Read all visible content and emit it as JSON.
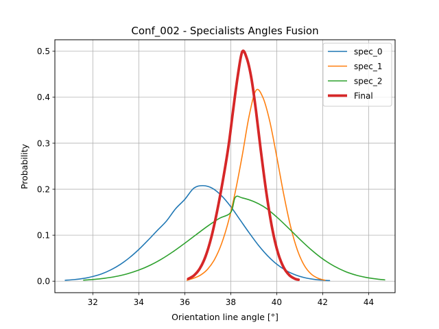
{
  "chart_data": {
    "type": "line",
    "title": "Conf_002 - Specialists Angles Fusion",
    "xlabel": "Orientation line angle [°]",
    "ylabel": "Probability",
    "xlim": [
      30.35,
      45.15
    ],
    "ylim": [
      -0.025,
      0.525
    ],
    "xticks": [
      32,
      34,
      36,
      38,
      40,
      42,
      44
    ],
    "yticks": [
      0.0,
      0.1,
      0.2,
      0.3,
      0.4,
      0.5
    ],
    "grid": true,
    "legend_position": "top-right",
    "series": [
      {
        "name": "spec_0",
        "color": "#1f77b4",
        "x": [
          30.8,
          31.2,
          31.6,
          32.0,
          32.4,
          32.8,
          33.2,
          33.6,
          34.0,
          34.4,
          34.8,
          35.2,
          35.6,
          36.0,
          36.4,
          36.8,
          37.2,
          37.6,
          38.0,
          38.4,
          38.8,
          39.2,
          39.6,
          40.0,
          40.4,
          40.8,
          41.2,
          41.6,
          42.0,
          42.3
        ],
        "y": [
          0.002,
          0.0035,
          0.006,
          0.0102,
          0.0162,
          0.025,
          0.0366,
          0.0513,
          0.0689,
          0.0889,
          0.11,
          0.1306,
          0.1574,
          0.1778,
          0.2025,
          0.2077,
          0.2021,
          0.1859,
          0.1623,
          0.1338,
          0.1053,
          0.0784,
          0.0554,
          0.037,
          0.0233,
          0.0139,
          0.0078,
          0.0042,
          0.0021,
          0.0013
        ]
      },
      {
        "name": "spec_1",
        "color": "#ff7f0e",
        "x": [
          36.1,
          36.4,
          36.7,
          37.0,
          37.3,
          37.6,
          37.9,
          38.2,
          38.5,
          38.8,
          39.1,
          39.4,
          39.7,
          40.0,
          40.3,
          40.6,
          40.9,
          41.2,
          41.5,
          41.8,
          42.1
        ],
        "y": [
          0.002,
          0.0066,
          0.0136,
          0.0263,
          0.0477,
          0.0814,
          0.1301,
          0.1947,
          0.2732,
          0.3593,
          0.415,
          0.3995,
          0.3472,
          0.2711,
          0.1901,
          0.1196,
          0.0675,
          0.0342,
          0.0155,
          0.0063,
          0.002
        ]
      },
      {
        "name": "spec_2",
        "color": "#2ca02c",
        "x": [
          31.6,
          32.0,
          32.5,
          33.0,
          33.5,
          34.0,
          34.5,
          35.0,
          35.5,
          36.0,
          36.5,
          37.0,
          37.5,
          38.0,
          38.2,
          38.5,
          39.0,
          39.5,
          40.0,
          40.5,
          41.0,
          41.5,
          42.0,
          42.5,
          43.0,
          43.5,
          44.0,
          44.5,
          44.7
        ],
        "y": [
          0.0023,
          0.0036,
          0.0062,
          0.0102,
          0.016,
          0.0241,
          0.0348,
          0.0483,
          0.0644,
          0.0824,
          0.1013,
          0.1199,
          0.1364,
          0.1494,
          0.1825,
          0.1812,
          0.1732,
          0.1599,
          0.1396,
          0.116,
          0.0914,
          0.0684,
          0.0485,
          0.0326,
          0.0207,
          0.0124,
          0.0071,
          0.0038,
          0.0029
        ]
      },
      {
        "name": "Final",
        "color": "#d62728",
        "x": [
          36.15,
          36.4,
          36.65,
          36.9,
          37.15,
          37.4,
          37.65,
          37.9,
          38.1,
          38.3,
          38.5,
          38.7,
          38.9,
          39.1,
          39.3,
          39.55,
          39.8,
          40.05,
          40.3,
          40.55,
          40.8,
          40.95
        ],
        "y": [
          0.005,
          0.0124,
          0.0271,
          0.0533,
          0.0943,
          0.1504,
          0.2167,
          0.2928,
          0.3702,
          0.4443,
          0.499,
          0.4845,
          0.4408,
          0.3702,
          0.2875,
          0.1924,
          0.1157,
          0.0624,
          0.0301,
          0.013,
          0.005,
          0.0032
        ]
      }
    ]
  }
}
